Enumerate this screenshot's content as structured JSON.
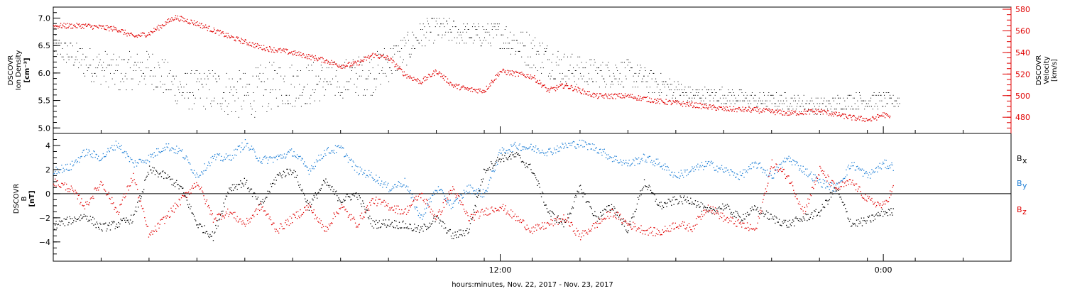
{
  "xlabel": "hours:minutes, Nov. 22, 2017 - Nov. 23, 2017",
  "colors": {
    "black": "#000000",
    "red": "#e00000",
    "blue": "#1f7fd6",
    "axis_red": "#e00000"
  },
  "chart_data": [
    {
      "type": "scatter",
      "panel": "top",
      "ylabel_left": [
        "DSCOVR",
        "Ion Density",
        "[cm⁻³]"
      ],
      "ylabel_right": [
        "DSCOVR",
        "Velocity",
        "[km/s]"
      ],
      "ylim_left": [
        4.9,
        7.2
      ],
      "ylim_right": [
        465,
        582
      ],
      "xlim": [
        -2.0,
        28.0
      ],
      "x_ticks": [
        {
          "x": 12.0,
          "label": "12:00"
        },
        {
          "x": 24.0,
          "label": "0:00"
        }
      ],
      "x_minor_ticks": [
        -0.5,
        1.0,
        2.5,
        4.0,
        5.5,
        7.0,
        8.5,
        10.0,
        11.5,
        13.0,
        14.5,
        16.0,
        17.5,
        19.0,
        20.5,
        22.0,
        23.5,
        25.0,
        26.5
      ],
      "yticks_left": [
        5.0,
        5.5,
        6.0,
        6.5,
        7.0
      ],
      "yticks_left_labels": [
        "5.0",
        "5.5",
        "6.0",
        "6.5",
        "7.0"
      ],
      "yticks_right": [
        480,
        500,
        520,
        540,
        560,
        580
      ],
      "yticks_right_labels": [
        "480",
        "500",
        "520",
        "540",
        "560",
        "580"
      ],
      "series": [
        {
          "color": "black",
          "axis": "left",
          "x": [
            -2.0,
            -1.0,
            0.0,
            1.0,
            2.0,
            3.0,
            4.0,
            5.0,
            6.0,
            7.0,
            8.0,
            9.0,
            9.5,
            10.0,
            11.0,
            12.0,
            13.0,
            14.0,
            15.0,
            16.0,
            17.0,
            18.0,
            19.0,
            20.0,
            21.0,
            22.0,
            23.0,
            24.0,
            24.5
          ],
          "y": [
            6.5,
            6.2,
            6.0,
            6.1,
            5.7,
            5.7,
            5.6,
            5.8,
            5.8,
            5.9,
            6.0,
            6.4,
            6.7,
            6.8,
            6.7,
            6.7,
            6.4,
            6.1,
            6.0,
            6.0,
            5.8,
            5.6,
            5.6,
            5.5,
            5.5,
            5.4,
            5.5,
            5.5,
            5.5
          ],
          "spread": [
            0.2,
            0.3,
            0.35,
            0.35,
            0.35,
            0.4,
            0.45,
            0.45,
            0.4,
            0.35,
            0.4,
            0.3,
            0.25,
            0.25,
            0.2,
            0.25,
            0.35,
            0.3,
            0.25,
            0.25,
            0.2,
            0.15,
            0.15,
            0.15,
            0.15,
            0.15,
            0.15,
            0.15,
            0.1
          ]
        },
        {
          "color": "red",
          "axis": "right",
          "x": [
            -2.0,
            -1.0,
            0.0,
            0.5,
            1.0,
            1.8,
            2.5,
            3.5,
            4.5,
            5.5,
            6.5,
            7.0,
            7.5,
            8.0,
            8.5,
            9.0,
            9.5,
            10.0,
            10.5,
            11.0,
            11.5,
            12.0,
            13.0,
            13.5,
            14.0,
            15.0,
            16.0,
            17.0,
            18.0,
            19.0,
            20.0,
            21.0,
            22.0,
            23.0,
            23.6,
            24.0,
            24.2
          ],
          "y": [
            565,
            565,
            562,
            555,
            558,
            573,
            567,
            555,
            545,
            540,
            533,
            528,
            530,
            538,
            535,
            520,
            513,
            523,
            510,
            506,
            505,
            523,
            518,
            505,
            510,
            500,
            500,
            495,
            492,
            488,
            487,
            484,
            486,
            480,
            478,
            483,
            480
          ]
        }
      ]
    },
    {
      "type": "scatter",
      "panel": "bottom",
      "ylabel_left": [
        "DSCOVR",
        "B",
        "[nT]"
      ],
      "ylim": [
        -5.6,
        5.0
      ],
      "xlim": [
        -2.0,
        28.0
      ],
      "x_ticks": [
        {
          "x": 12.0,
          "label": "12:00"
        },
        {
          "x": 24.0,
          "label": "0:00"
        }
      ],
      "x_tick_labels": [
        "12:00",
        "0:00"
      ],
      "yticks": [
        -4,
        -2,
        0,
        2,
        4
      ],
      "yticks_labels": [
        "−4",
        "−2",
        "0",
        "2",
        "4"
      ],
      "zero_line": true,
      "legend": [
        "Bx",
        "By",
        "Bz"
      ],
      "series": [
        {
          "name": "Bx",
          "color": "black",
          "x": [
            -2.0,
            -1.5,
            -1.0,
            -0.5,
            0.0,
            0.5,
            1.0,
            1.5,
            2.0,
            2.5,
            3.0,
            3.5,
            4.0,
            4.5,
            5.0,
            5.5,
            6.0,
            6.5,
            7.0,
            7.5,
            8.0,
            8.5,
            9.0,
            9.5,
            10.0,
            10.5,
            11.0,
            11.5,
            12.0,
            12.5,
            13.0,
            13.5,
            14.0,
            14.5,
            15.0,
            15.5,
            16.0,
            16.5,
            17.0,
            17.5,
            18.0,
            18.5,
            19.0,
            19.5,
            20.0,
            20.5,
            21.0,
            21.5,
            22.0,
            22.5,
            23.0,
            23.5,
            24.0,
            24.3
          ],
          "y": [
            -2.6,
            -2.2,
            -1.8,
            -2.8,
            -2.5,
            -2.0,
            2.0,
            1.5,
            0.5,
            -2.5,
            -3.5,
            0.5,
            1.0,
            -1.0,
            1.5,
            2.0,
            -1.0,
            1.0,
            -0.5,
            0.0,
            -2.5,
            -2.4,
            -2.6,
            -3.0,
            -2.0,
            -3.5,
            -3.0,
            2.0,
            3.0,
            3.2,
            2.0,
            -1.5,
            -2.5,
            0.5,
            -2.0,
            -1.0,
            -3.0,
            1.0,
            -1.0,
            -0.5,
            -0.5,
            -1.5,
            -1.0,
            -2.0,
            -1.2,
            -2.0,
            -2.5,
            -2.0,
            -1.5,
            0.5,
            -2.5,
            -2.2,
            -1.5,
            -1.5
          ]
        },
        {
          "name": "By",
          "color": "blue",
          "x": [
            -2.0,
            -1.5,
            -1.0,
            -0.5,
            0.0,
            0.5,
            1.0,
            1.5,
            2.0,
            2.5,
            3.0,
            3.5,
            4.0,
            4.5,
            5.0,
            5.5,
            6.0,
            6.5,
            7.0,
            7.5,
            8.0,
            8.5,
            9.0,
            9.5,
            10.0,
            10.5,
            11.0,
            11.5,
            12.0,
            12.5,
            13.0,
            13.5,
            14.0,
            14.5,
            15.0,
            15.5,
            16.0,
            16.5,
            17.0,
            17.5,
            18.0,
            18.5,
            19.0,
            19.5,
            20.0,
            20.5,
            21.0,
            21.5,
            22.0,
            22.5,
            23.0,
            23.5,
            24.0,
            24.3
          ],
          "y": [
            2.0,
            2.2,
            3.5,
            3.0,
            4.2,
            2.5,
            3.0,
            4.0,
            3.5,
            1.5,
            3.0,
            3.0,
            4.2,
            2.8,
            3.0,
            3.5,
            2.0,
            3.5,
            3.8,
            2.0,
            1.5,
            0.5,
            1.0,
            -2.0,
            0.5,
            -1.0,
            0.5,
            0.0,
            3.5,
            4.0,
            3.8,
            3.5,
            4.0,
            4.2,
            3.8,
            3.0,
            2.5,
            3.0,
            2.5,
            1.5,
            2.0,
            2.5,
            2.0,
            1.5,
            2.5,
            1.5,
            3.0,
            2.0,
            1.0,
            0.5,
            2.5,
            1.5,
            2.5,
            2.3
          ]
        },
        {
          "name": "Bz",
          "color": "red",
          "x": [
            -2.0,
            -1.5,
            -1.0,
            -0.5,
            0.0,
            0.5,
            1.0,
            1.5,
            2.0,
            2.5,
            3.0,
            3.5,
            4.0,
            4.5,
            5.0,
            5.5,
            6.0,
            6.5,
            7.0,
            7.5,
            8.0,
            8.5,
            9.0,
            9.5,
            10.0,
            10.5,
            11.0,
            11.5,
            12.0,
            12.5,
            13.0,
            13.5,
            14.0,
            14.5,
            15.0,
            15.5,
            16.0,
            16.5,
            17.0,
            17.5,
            18.0,
            18.5,
            19.0,
            19.5,
            20.0,
            20.5,
            21.0,
            21.5,
            22.0,
            22.5,
            23.0,
            23.5,
            24.0,
            24.3
          ],
          "y": [
            1.0,
            0.5,
            -1.0,
            1.0,
            -1.5,
            1.5,
            -3.5,
            -2.0,
            -0.5,
            1.0,
            -2.0,
            -1.5,
            -2.5,
            -1.0,
            -3.0,
            -2.0,
            -1.0,
            -3.0,
            -1.0,
            -2.5,
            -0.5,
            -1.0,
            -1.5,
            0.0,
            -2.0,
            0.5,
            -2.0,
            -1.5,
            -1.0,
            -2.0,
            -3.0,
            -2.5,
            -2.0,
            -3.5,
            -2.5,
            -1.5,
            -2.5,
            -3.0,
            -3.2,
            -2.5,
            -2.8,
            -1.0,
            -2.0,
            -2.5,
            -3.0,
            2.5,
            1.5,
            -1.5,
            2.0,
            0.5,
            1.0,
            -0.5,
            -1.0,
            0.5
          ]
        }
      ]
    }
  ]
}
